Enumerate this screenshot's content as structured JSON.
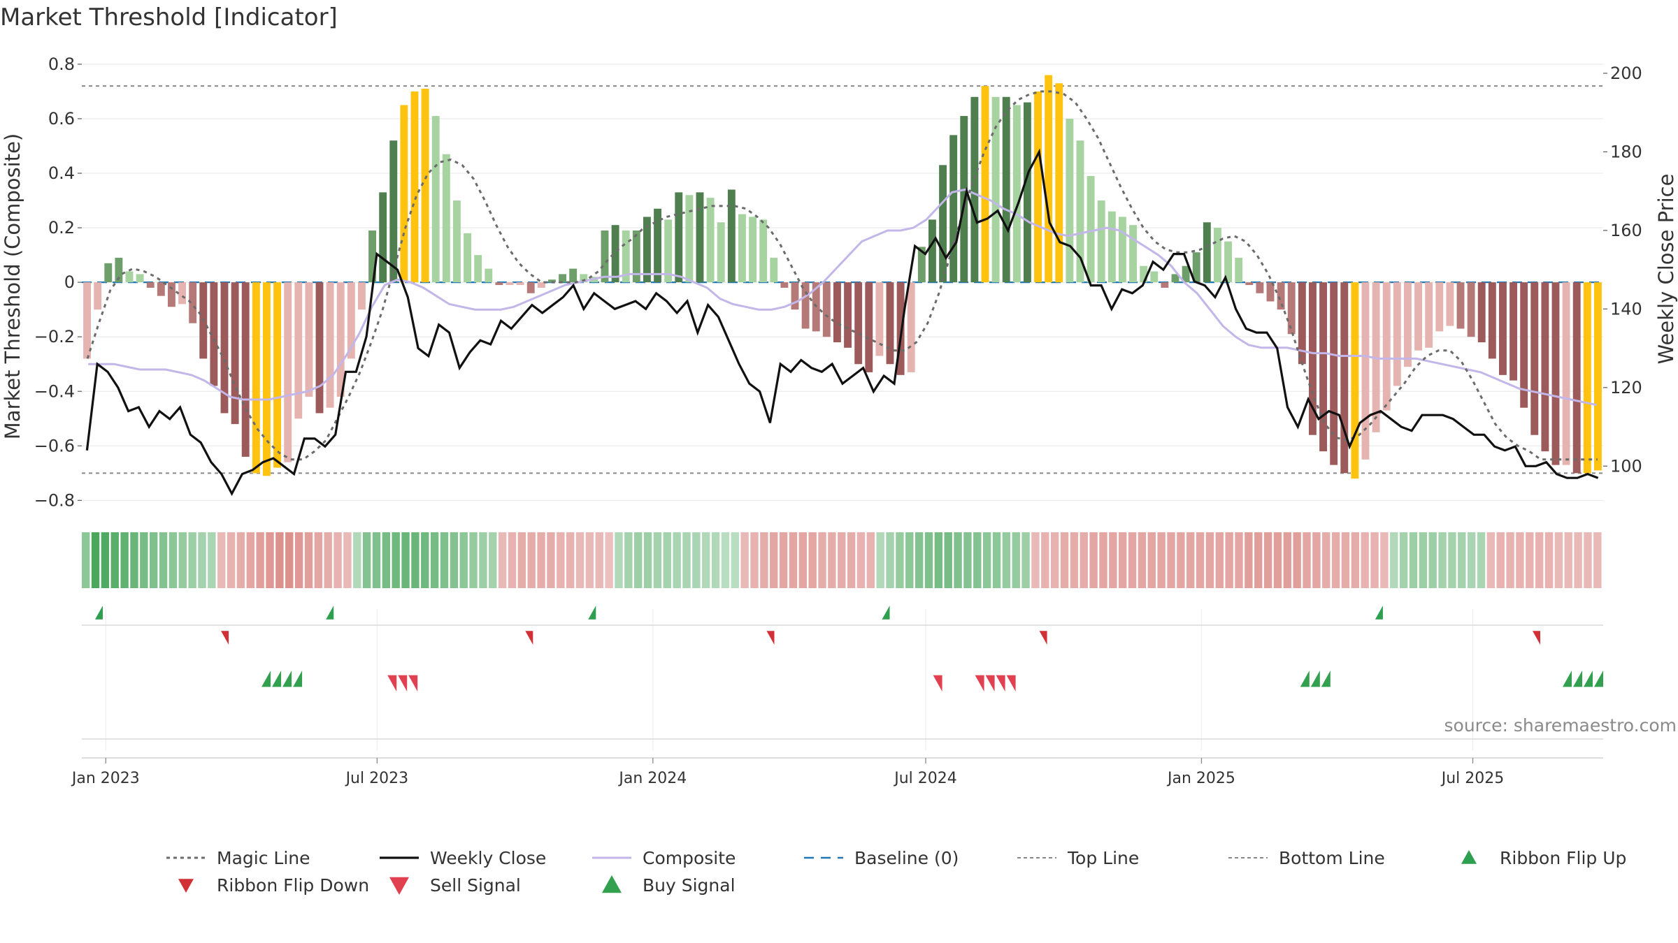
{
  "chart_data": {
    "type": "bar",
    "title": "Market Threshold [Indicator]",
    "ylabel": "Market Threshold (Composite)",
    "y2label": "Weekly Close Price",
    "ylim": [
      -0.84,
      0.81
    ],
    "y2lim": [
      88.5,
      203.0
    ],
    "yticks": [
      -0.8,
      -0.6,
      -0.4,
      -0.2,
      0,
      0.2,
      0.4,
      0.6,
      0.8
    ],
    "yticklabels": [
      "−0.8",
      "−0.6",
      "−0.4",
      "−0.2",
      "0",
      "0.2",
      "0.4",
      "0.6",
      "0.8"
    ],
    "y2ticks": [
      100,
      120,
      140,
      160,
      180,
      200
    ],
    "y2ticklabels": [
      "100",
      "120",
      "140",
      "160",
      "180",
      "200"
    ],
    "x_start": "2022-12-16",
    "x_end": "2025-09-26",
    "xticks": [
      "2023-01-01",
      "2023-07-01",
      "2024-01-01",
      "2024-07-01",
      "2025-01-01",
      "2025-07-01"
    ],
    "xticklabels": [
      "Jan 2023",
      "Jul 2023",
      "Jan 2024",
      "Jul 2024",
      "Jan 2025",
      "Jul 2025"
    ],
    "top_line": 0.72,
    "bottom_line": -0.7,
    "baseline": 0,
    "grid": true,
    "legend_position": "bottom",
    "source": "source: sharemaestro.com",
    "colors": {
      "bull_strong": "#4f7f4f",
      "bull_mid": "#6e9e6a",
      "bull_light": "#a6d3a0",
      "bear_strong": "#9c5a5a",
      "bear_mid": "#b57a78",
      "bear_light": "#e6b4b0",
      "extreme": "#ffc20e",
      "weekly_close": "#111111",
      "magic_line": "#6b6b6b",
      "composite": "#c3b6e8",
      "baseline": "#1f77b4",
      "ribbon_up": "#2e9e4f",
      "ribbon_down": "#d03036",
      "sell_signal": "#e04050",
      "buy_signal": "#32a04f"
    },
    "weekly_composite": [
      -0.28,
      -0.1,
      0.07,
      0.09,
      0.04,
      0.03,
      -0.02,
      -0.05,
      -0.09,
      -0.08,
      -0.15,
      -0.28,
      -0.38,
      -0.48,
      -0.52,
      -0.64,
      -0.7,
      -0.71,
      -0.68,
      -0.66,
      -0.5,
      -0.42,
      -0.48,
      -0.46,
      -0.42,
      -0.28,
      -0.1,
      0.19,
      0.33,
      0.52,
      0.65,
      0.7,
      0.71,
      0.61,
      0.47,
      0.3,
      0.18,
      0.1,
      0.05,
      -0.01,
      -0.01,
      -0.01,
      -0.04,
      -0.02,
      0.01,
      0.03,
      0.05,
      0.03,
      0.02,
      0.19,
      0.21,
      0.19,
      0.19,
      0.24,
      0.27,
      0.23,
      0.33,
      0.32,
      0.33,
      0.31,
      0.22,
      0.34,
      0.25,
      0.24,
      0.23,
      0.09,
      -0.02,
      -0.1,
      -0.17,
      -0.18,
      -0.2,
      -0.22,
      -0.24,
      -0.3,
      -0.33,
      -0.27,
      -0.3,
      -0.34,
      -0.33,
      0.13,
      0.23,
      0.43,
      0.54,
      0.61,
      0.68,
      0.72,
      0.68,
      0.68,
      0.65,
      0.66,
      0.7,
      0.76,
      0.73,
      0.6,
      0.52,
      0.39,
      0.3,
      0.26,
      0.24,
      0.21,
      0.06,
      0.04,
      -0.02,
      0.03,
      0.06,
      0.11,
      0.22,
      0.2,
      0.15,
      0.09,
      -0.01,
      -0.04,
      -0.07,
      -0.1,
      -0.19,
      -0.3,
      -0.56,
      -0.62,
      -0.67,
      -0.7,
      -0.72,
      -0.65,
      -0.55,
      -0.47,
      -0.38,
      -0.31,
      -0.25,
      -0.24,
      -0.18,
      -0.16,
      -0.17,
      -0.2,
      -0.22,
      -0.28,
      -0.34,
      -0.36,
      -0.46,
      -0.56,
      -0.62,
      -0.67,
      -0.67,
      -0.7,
      -0.7,
      -0.69
    ],
    "weekly_extreme": [
      0,
      0,
      0,
      0,
      0,
      0,
      0,
      0,
      0,
      0,
      0,
      0,
      0,
      0,
      0,
      0,
      1,
      1,
      1,
      0,
      0,
      0,
      0,
      0,
      0,
      0,
      0,
      0,
      0,
      0,
      1,
      1,
      1,
      0,
      0,
      0,
      0,
      0,
      0,
      0,
      0,
      0,
      0,
      0,
      0,
      0,
      0,
      0,
      0,
      0,
      0,
      0,
      0,
      0,
      0,
      0,
      0,
      0,
      0,
      0,
      0,
      0,
      0,
      0,
      0,
      0,
      0,
      0,
      0,
      0,
      0,
      0,
      0,
      0,
      0,
      0,
      0,
      0,
      0,
      0,
      0,
      0,
      0,
      0,
      0,
      1,
      0,
      0,
      0,
      0,
      1,
      1,
      1,
      0,
      0,
      0,
      0,
      0,
      0,
      0,
      0,
      0,
      0,
      0,
      0,
      0,
      0,
      0,
      0,
      0,
      0,
      0,
      0,
      0,
      0,
      0,
      0,
      0,
      0,
      0,
      1,
      0,
      0,
      0,
      0,
      0,
      0,
      0,
      0,
      0,
      0,
      0,
      0,
      0,
      0,
      0,
      0,
      0,
      0,
      0,
      0,
      0,
      1,
      1,
      1
    ],
    "weekly_close": [
      104,
      126,
      124,
      120,
      114,
      115,
      110,
      114,
      112,
      115,
      108,
      106,
      101,
      98,
      93,
      98,
      99,
      101,
      102,
      100,
      98,
      107,
      107,
      105,
      108,
      124,
      124,
      133,
      154,
      152,
      150,
      143,
      130,
      128,
      136,
      134,
      125,
      129,
      132,
      131,
      137,
      135,
      138,
      141,
      139,
      141,
      143,
      146,
      140,
      144,
      142,
      140,
      141,
      142,
      140,
      144,
      142,
      139,
      142,
      134,
      141,
      138,
      132,
      126,
      121,
      119,
      111,
      126,
      124,
      127,
      125,
      124,
      126,
      121,
      123,
      125,
      119,
      123,
      121,
      140,
      156,
      154,
      158,
      153,
      157,
      170,
      162,
      163,
      165,
      160,
      167,
      175,
      180,
      162,
      157,
      156,
      153,
      146,
      146,
      140,
      145,
      144,
      146,
      152,
      150,
      154,
      154,
      147,
      146,
      143,
      148,
      140,
      135,
      134,
      134,
      130,
      115,
      110,
      117,
      112,
      114,
      113,
      105,
      111,
      113,
      114,
      112,
      110,
      109,
      113,
      113,
      113,
      112,
      110,
      108,
      108,
      105,
      104,
      105,
      100,
      100,
      101,
      98,
      97,
      97,
      98,
      97
    ],
    "magic_line": [
      -0.28,
      -0.15,
      -0.03,
      0.03,
      0.05,
      0.04,
      0.02,
      -0.01,
      -0.04,
      -0.07,
      -0.12,
      -0.2,
      -0.28,
      -0.38,
      -0.47,
      -0.54,
      -0.59,
      -0.63,
      -0.65,
      -0.65,
      -0.62,
      -0.58,
      -0.5,
      -0.42,
      -0.33,
      -0.22,
      -0.1,
      0.05,
      0.2,
      0.32,
      0.4,
      0.44,
      0.45,
      0.43,
      0.38,
      0.3,
      0.21,
      0.13,
      0.07,
      0.03,
      0.0,
      0.0,
      0.0,
      0.0,
      0.01,
      0.04,
      0.09,
      0.13,
      0.16,
      0.2,
      0.22,
      0.24,
      0.25,
      0.26,
      0.27,
      0.28,
      0.28,
      0.28,
      0.27,
      0.24,
      0.2,
      0.14,
      0.06,
      -0.02,
      -0.08,
      -0.12,
      -0.15,
      -0.17,
      -0.19,
      -0.21,
      -0.23,
      -0.25,
      -0.25,
      -0.22,
      -0.15,
      -0.04,
      0.1,
      0.24,
      0.37,
      0.48,
      0.57,
      0.63,
      0.67,
      0.69,
      0.7,
      0.7,
      0.69,
      0.66,
      0.6,
      0.53,
      0.44,
      0.35,
      0.27,
      0.2,
      0.15,
      0.12,
      0.11,
      0.11,
      0.12,
      0.14,
      0.16,
      0.17,
      0.15,
      0.1,
      0.03,
      -0.06,
      -0.17,
      -0.3,
      -0.42,
      -0.52,
      -0.57,
      -0.58,
      -0.56,
      -0.52,
      -0.47,
      -0.42,
      -0.37,
      -0.31,
      -0.27,
      -0.25,
      -0.25,
      -0.29,
      -0.36,
      -0.44,
      -0.52,
      -0.57,
      -0.6,
      -0.62,
      -0.65,
      -0.65,
      -0.65,
      -0.65,
      -0.65,
      -0.65
    ],
    "composite": [
      -0.3,
      -0.3,
      -0.3,
      -0.31,
      -0.32,
      -0.32,
      -0.32,
      -0.33,
      -0.34,
      -0.36,
      -0.39,
      -0.42,
      -0.43,
      -0.43,
      -0.43,
      -0.42,
      -0.41,
      -0.4,
      -0.38,
      -0.34,
      -0.27,
      -0.19,
      -0.09,
      -0.01,
      0.01,
      0.0,
      -0.02,
      -0.05,
      -0.08,
      -0.09,
      -0.1,
      -0.1,
      -0.1,
      -0.09,
      -0.07,
      -0.05,
      -0.03,
      -0.01,
      0.0,
      0.01,
      0.02,
      0.02,
      0.03,
      0.03,
      0.03,
      0.03,
      0.02,
      0.0,
      -0.02,
      -0.06,
      -0.08,
      -0.09,
      -0.1,
      -0.1,
      -0.09,
      -0.07,
      -0.04,
      0.0,
      0.05,
      0.1,
      0.15,
      0.17,
      0.19,
      0.19,
      0.2,
      0.23,
      0.28,
      0.33,
      0.34,
      0.32,
      0.3,
      0.27,
      0.25,
      0.22,
      0.2,
      0.18,
      0.17,
      0.18,
      0.19,
      0.2,
      0.19,
      0.16,
      0.13,
      0.1,
      0.06,
      0.0,
      -0.04,
      -0.1,
      -0.16,
      -0.2,
      -0.23,
      -0.24,
      -0.24,
      -0.24,
      -0.25,
      -0.26,
      -0.26,
      -0.27,
      -0.27,
      -0.27,
      -0.28,
      -0.28,
      -0.28,
      -0.28,
      -0.29,
      -0.3,
      -0.31,
      -0.32,
      -0.33,
      -0.35,
      -0.37,
      -0.39,
      -0.4,
      -0.41,
      -0.42,
      -0.43,
      -0.44,
      -0.45
    ],
    "ribbon": [
      0.45,
      0.9,
      0.85,
      0.8,
      0.75,
      0.7,
      0.6,
      0.55,
      0.5,
      0.45,
      0.4,
      0.35,
      0.3,
      0.25,
      -0.2,
      -0.25,
      -0.3,
      -0.35,
      -0.4,
      -0.45,
      -0.5,
      -0.5,
      -0.45,
      -0.4,
      -0.35,
      -0.3,
      -0.25,
      -0.2,
      0.2,
      0.5,
      0.55,
      0.6,
      0.65,
      0.7,
      0.7,
      0.65,
      0.6,
      0.55,
      0.5,
      0.45,
      0.4,
      0.35,
      0.3,
      -0.2,
      -0.25,
      -0.3,
      -0.3,
      -0.3,
      -0.3,
      -0.25,
      -0.25,
      -0.2,
      -0.2,
      -0.2,
      -0.15,
      0.2,
      0.3,
      0.35,
      0.35,
      0.3,
      0.3,
      0.25,
      0.25,
      0.25,
      0.2,
      0.2,
      0.15,
      0.15,
      -0.2,
      -0.25,
      -0.3,
      -0.35,
      -0.35,
      -0.35,
      -0.35,
      -0.35,
      -0.3,
      -0.3,
      -0.3,
      -0.3,
      -0.25,
      -0.25,
      0.2,
      0.3,
      0.4,
      0.45,
      0.5,
      0.55,
      0.6,
      0.6,
      0.55,
      0.5,
      0.5,
      0.45,
      0.45,
      0.4,
      0.4,
      0.35,
      -0.2,
      -0.25,
      -0.25,
      -0.3,
      -0.3,
      -0.3,
      -0.35,
      -0.35,
      -0.35,
      -0.35,
      -0.35,
      -0.35,
      -0.35,
      -0.35,
      -0.35,
      -0.35,
      -0.35,
      -0.35,
      -0.35,
      -0.35,
      -0.35,
      -0.35,
      -0.4,
      -0.4,
      -0.4,
      -0.4,
      -0.4,
      -0.4,
      -0.35,
      -0.35,
      -0.3,
      -0.3,
      -0.3,
      -0.3,
      -0.25,
      -0.25,
      -0.2,
      0.2,
      0.3,
      0.35,
      0.35,
      0.35,
      0.3,
      0.3,
      0.3,
      0.25,
      0.25,
      -0.2,
      -0.25,
      -0.25,
      -0.25,
      -0.25,
      -0.25,
      -0.25,
      -0.2,
      -0.2,
      -0.2,
      -0.2,
      -0.2
    ],
    "ribbon_flip_up_dates": [
      "2022-12-30",
      "2023-06-02",
      "2023-11-24",
      "2024-06-07",
      "2025-05-02"
    ],
    "ribbon_flip_down_dates": [
      "2023-03-24",
      "2023-10-13",
      "2024-03-22",
      "2024-09-20",
      "2025-08-15"
    ],
    "sell_signal_dates": [
      "2023-07-14",
      "2023-07-21",
      "2023-07-28",
      "2024-07-12",
      "2024-08-09",
      "2024-08-16",
      "2024-08-23",
      "2024-08-30"
    ],
    "buy_signal_dates": [
      "2023-04-21",
      "2023-04-28",
      "2023-05-05",
      "2023-05-12",
      "2025-03-14",
      "2025-03-21",
      "2025-03-28",
      "2025-09-05",
      "2025-09-12",
      "2025-09-19",
      "2025-09-26"
    ],
    "legend": [
      {
        "key": "magic",
        "label": "Magic Line"
      },
      {
        "key": "weekly",
        "label": "Weekly Close"
      },
      {
        "key": "composite",
        "label": "Composite"
      },
      {
        "key": "baseline",
        "label": "Baseline (0)"
      },
      {
        "key": "top",
        "label": "Top Line"
      },
      {
        "key": "bottom",
        "label": "Bottom Line"
      },
      {
        "key": "flipup",
        "label": "Ribbon Flip Up"
      },
      {
        "key": "flipdown",
        "label": "Ribbon Flip Down"
      },
      {
        "key": "sell",
        "label": "Sell Signal"
      },
      {
        "key": "buy",
        "label": "Buy Signal"
      }
    ]
  }
}
